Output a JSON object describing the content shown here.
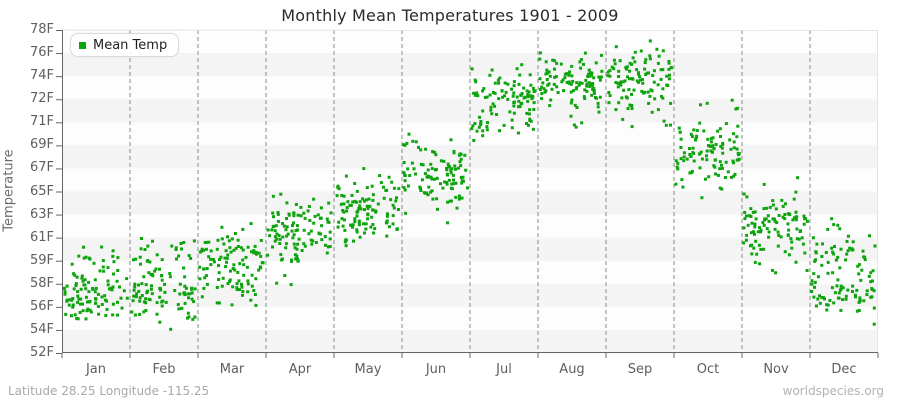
{
  "title": "Monthly Mean Temperatures 1901 - 2009",
  "legend": {
    "label": "Mean Temp"
  },
  "y_axis": {
    "label": "Temperature",
    "tick_labels": [
      "78F",
      "76F",
      "74F",
      "72F",
      "71F",
      "69F",
      "67F",
      "65F",
      "63F",
      "61F",
      "59F",
      "58F",
      "56F",
      "54F",
      "52F"
    ],
    "tick_values_f": [
      78,
      76,
      74,
      72,
      71,
      69,
      67,
      65,
      63,
      61,
      59,
      58,
      56,
      54,
      52
    ]
  },
  "x_axis": {
    "months": [
      "Jan",
      "Feb",
      "Mar",
      "Apr",
      "May",
      "Jun",
      "Jul",
      "Aug",
      "Sep",
      "Oct",
      "Nov",
      "Dec"
    ]
  },
  "footer": {
    "left": "Latitude 28.25 Longitude -115.25",
    "right": "worldspecies.org"
  },
  "colors": {
    "point": "#0da40d",
    "band_gray": "#f4f4f4",
    "band_white": "#fdfdfd",
    "gridline": "#8a8a8a",
    "axis": "#666666",
    "plot_border": "#e4e4e4",
    "tick_text": "#5f5f5f"
  },
  "chart_data": {
    "type": "scatter",
    "title": "Monthly Mean Temperatures 1901 - 2009",
    "xlabel": "",
    "ylabel": "Temperature",
    "x_categories": [
      "Jan",
      "Feb",
      "Mar",
      "Apr",
      "May",
      "Jun",
      "Jul",
      "Aug",
      "Sep",
      "Oct",
      "Nov",
      "Dec"
    ],
    "y_tick_values_f": [
      78,
      76,
      74,
      72,
      71,
      69,
      67,
      65,
      63,
      61,
      59,
      58,
      56,
      54,
      52
    ],
    "year_range": [
      1901,
      2009
    ],
    "points_per_month": 109,
    "legend_position": "top-left",
    "grid": "dashed-vertical-month-boundaries",
    "background_bands": "alternating horizontal stripes per tick interval",
    "series": [
      {
        "name": "Mean Temp",
        "marker": "square",
        "monthly_distribution_f": [
          {
            "month": "Jan",
            "mean": 57.3,
            "std": 1.5,
            "min": 52.3,
            "max": 60.8
          },
          {
            "month": "Feb",
            "mean": 57.8,
            "std": 1.7,
            "min": 53.0,
            "max": 61.5
          },
          {
            "month": "Mar",
            "mean": 59.4,
            "std": 1.5,
            "min": 55.8,
            "max": 63.0
          },
          {
            "month": "Apr",
            "mean": 61.3,
            "std": 1.5,
            "min": 57.4,
            "max": 65.0
          },
          {
            "month": "May",
            "mean": 63.4,
            "std": 1.4,
            "min": 58.6,
            "max": 67.0
          },
          {
            "month": "Jun",
            "mean": 66.4,
            "std": 1.6,
            "min": 61.8,
            "max": 70.0
          },
          {
            "month": "Jul",
            "mean": 72.2,
            "std": 1.2,
            "min": 68.5,
            "max": 75.2
          },
          {
            "month": "Aug",
            "mean": 73.4,
            "std": 1.2,
            "min": 70.3,
            "max": 76.5
          },
          {
            "month": "Sep",
            "mean": 73.6,
            "std": 1.4,
            "min": 69.5,
            "max": 77.2
          },
          {
            "month": "Oct",
            "mean": 68.4,
            "std": 1.5,
            "min": 64.3,
            "max": 72.0
          },
          {
            "month": "Nov",
            "mean": 61.8,
            "std": 1.6,
            "min": 58.0,
            "max": 66.3
          },
          {
            "month": "Dec",
            "mean": 58.2,
            "std": 1.7,
            "min": 54.2,
            "max": 63.0
          }
        ]
      }
    ]
  }
}
